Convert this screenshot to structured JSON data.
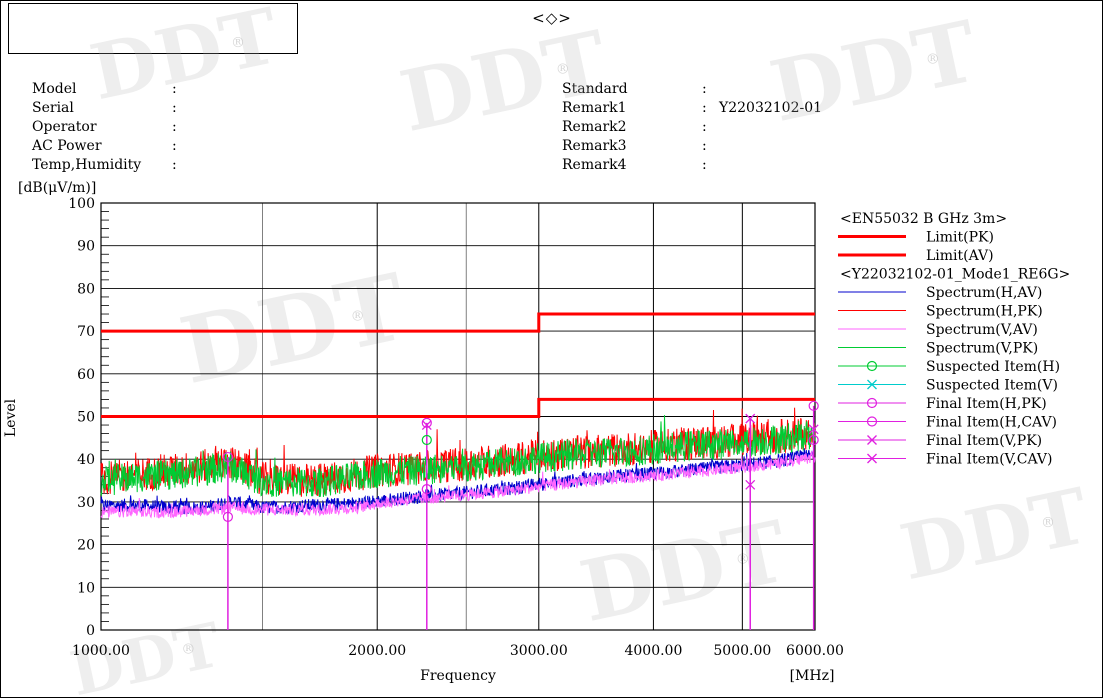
{
  "header": {
    "mark": "<◇>",
    "left_fields": [
      {
        "label": "Model",
        "value": ""
      },
      {
        "label": "Serial",
        "value": ""
      },
      {
        "label": "Operator",
        "value": ""
      },
      {
        "label": "AC Power",
        "value": ""
      },
      {
        "label": "Temp,Humidity",
        "value": ""
      }
    ],
    "right_fields": [
      {
        "label": "Standard",
        "value": ""
      },
      {
        "label": "Remark1",
        "value": "Y22032102-01"
      },
      {
        "label": "Remark2",
        "value": ""
      },
      {
        "label": "Remark3",
        "value": ""
      },
      {
        "label": "Remark4",
        "value": ""
      }
    ],
    "separator": ":"
  },
  "watermark": {
    "text": "DDT",
    "color": "#b0b0b0"
  },
  "chart_data": {
    "type": "line",
    "ylabel": "Level",
    "yunit": "[dB(μV/m)]",
    "xlabel": "Frequency",
    "xunit": "[MHz]",
    "x_scale": "log",
    "xlim": [
      1000,
      6000
    ],
    "ylim": [
      0,
      100
    ],
    "x_ticks": [
      1000,
      2000,
      3000,
      4000,
      5000,
      6000
    ],
    "x_tick_labels": [
      "1000.00",
      "2000.00",
      "3000.00",
      "4000.00",
      "5000.00",
      "6000.00"
    ],
    "y_ticks": [
      0,
      10,
      20,
      30,
      40,
      50,
      60,
      70,
      80,
      90,
      100
    ],
    "grid": true,
    "legend_position": "right",
    "legend": [
      {
        "type": "header",
        "label": "<EN55032 B GHz 3m>"
      },
      {
        "type": "thick-line",
        "label": "Limit(PK)",
        "color": "#ff0000"
      },
      {
        "type": "thick-line",
        "label": "Limit(AV)",
        "color": "#ff0000"
      },
      {
        "type": "header",
        "label": "<Y22032102-01_Mode1_RE6G>"
      },
      {
        "type": "line",
        "label": "Spectrum(H,AV)",
        "color": "#0000cc"
      },
      {
        "type": "line",
        "label": "Spectrum(H,PK)",
        "color": "#ff0000"
      },
      {
        "type": "line",
        "label": "Spectrum(V,AV)",
        "color": "#ff66ff"
      },
      {
        "type": "line",
        "label": "Spectrum(V,PK)",
        "color": "#00cc33"
      },
      {
        "type": "circle",
        "label": "Suspected Item(H)",
        "color": "#00cc33"
      },
      {
        "type": "cross",
        "label": "Suspected Item(V)",
        "color": "#00cccc"
      },
      {
        "type": "circle",
        "label": "Final Item(H,PK)",
        "color": "#e020e0"
      },
      {
        "type": "circle",
        "label": "Final Item(H,CAV)",
        "color": "#e020e0"
      },
      {
        "type": "cross",
        "label": "Final Item(V,PK)",
        "color": "#e020e0"
      },
      {
        "type": "cross",
        "label": "Final Item(V,CAV)",
        "color": "#e020e0"
      }
    ],
    "limits": [
      {
        "name": "Limit(PK)",
        "color": "#ff0000",
        "steps": [
          [
            1000,
            3000,
            70
          ],
          [
            3000,
            6000,
            74
          ]
        ]
      },
      {
        "name": "Limit(AV)",
        "color": "#ff0000",
        "steps": [
          [
            1000,
            3000,
            50
          ],
          [
            3000,
            6000,
            54
          ]
        ]
      }
    ],
    "spectrum_series": [
      {
        "name": "Spectrum(H,AV)",
        "color": "#0000cc",
        "x": [
          1000,
          1100,
          1200,
          1300,
          1380,
          1500,
          1700,
          1900,
          2000,
          2200,
          2500,
          2800,
          3000,
          3500,
          4000,
          4500,
          5000,
          5500,
          6000
        ],
        "y": [
          29,
          29,
          28.5,
          28.5,
          30,
          28.5,
          29,
          29.5,
          30,
          31,
          32,
          33,
          34,
          35.5,
          36.5,
          37.5,
          38.5,
          39.5,
          41
        ]
      },
      {
        "name": "Spectrum(H,PK)",
        "color": "#ff0000",
        "x": [
          1000,
          1100,
          1200,
          1300,
          1380,
          1500,
          1700,
          1900,
          2000,
          2200,
          2500,
          2800,
          3000,
          3500,
          4000,
          4500,
          5000,
          5500,
          6000
        ],
        "y": [
          35,
          36,
          37,
          38,
          39,
          35,
          34.5,
          36,
          37,
          37.5,
          38.5,
          39.5,
          40.5,
          41.5,
          42.5,
          43.5,
          44,
          45,
          46
        ]
      },
      {
        "name": "Spectrum(V,AV)",
        "color": "#ff66ff",
        "x": [
          1000,
          1100,
          1200,
          1300,
          1380,
          1500,
          1700,
          1900,
          2000,
          2200,
          2500,
          2800,
          3000,
          3500,
          4000,
          4500,
          5000,
          5500,
          6000
        ],
        "y": [
          27.5,
          27.5,
          27.5,
          28,
          28.5,
          28,
          28,
          28.5,
          29.5,
          30.5,
          31.5,
          32.5,
          33.5,
          35,
          36,
          37,
          38,
          39,
          40.5
        ]
      },
      {
        "name": "Spectrum(V,PK)",
        "color": "#00cc33",
        "x": [
          1000,
          1100,
          1200,
          1300,
          1380,
          1500,
          1700,
          1900,
          2000,
          2200,
          2500,
          2800,
          3000,
          3500,
          4000,
          4500,
          5000,
          5500,
          6000
        ],
        "y": [
          34.5,
          35.5,
          36,
          37,
          38,
          34.5,
          34,
          35.5,
          36.5,
          37,
          38,
          39,
          40,
          41,
          42,
          43,
          43.5,
          44.5,
          45.5
        ]
      }
    ],
    "markers": [
      {
        "name": "Final Item(H,PK)",
        "shape": "circle",
        "color": "#e020e0",
        "x": 1375,
        "y": 40.5
      },
      {
        "name": "Final Item(H,CAV)",
        "shape": "circle",
        "color": "#e020e0",
        "x": 1375,
        "y": 26.5
      },
      {
        "name": "Final Item(H,PK)",
        "shape": "circle",
        "color": "#e020e0",
        "x": 2265,
        "y": 48.5
      },
      {
        "name": "Final Item(H,CAV)",
        "shape": "circle",
        "color": "#e020e0",
        "x": 2265,
        "y": 33
      },
      {
        "name": "Suspected Item(H)",
        "shape": "circle",
        "color": "#00cc33",
        "x": 2265,
        "y": 44.5
      },
      {
        "name": "Final Item(V,PK)",
        "shape": "cross",
        "color": "#e020e0",
        "x": 2265,
        "y": 48
      },
      {
        "name": "Final Item(V,PK)",
        "shape": "cross",
        "color": "#e020e0",
        "x": 5100,
        "y": 49.5
      },
      {
        "name": "Final Item(V,CAV)",
        "shape": "cross",
        "color": "#e020e0",
        "x": 5100,
        "y": 34
      },
      {
        "name": "Final Item(H,PK)",
        "shape": "circle",
        "color": "#e020e0",
        "x": 5980,
        "y": 52.5
      },
      {
        "name": "Final Item(V,PK)",
        "shape": "cross",
        "color": "#e020e0",
        "x": 5980,
        "y": 47
      },
      {
        "name": "Final Item(H,CAV)",
        "shape": "circle",
        "color": "#e020e0",
        "x": 5980,
        "y": 44.5
      }
    ],
    "marker_stems": [
      {
        "x": 1375,
        "y": 40.5
      },
      {
        "x": 2265,
        "y": 48.5
      },
      {
        "x": 5100,
        "y": 49.5
      },
      {
        "x": 5980,
        "y": 52.5
      }
    ]
  }
}
